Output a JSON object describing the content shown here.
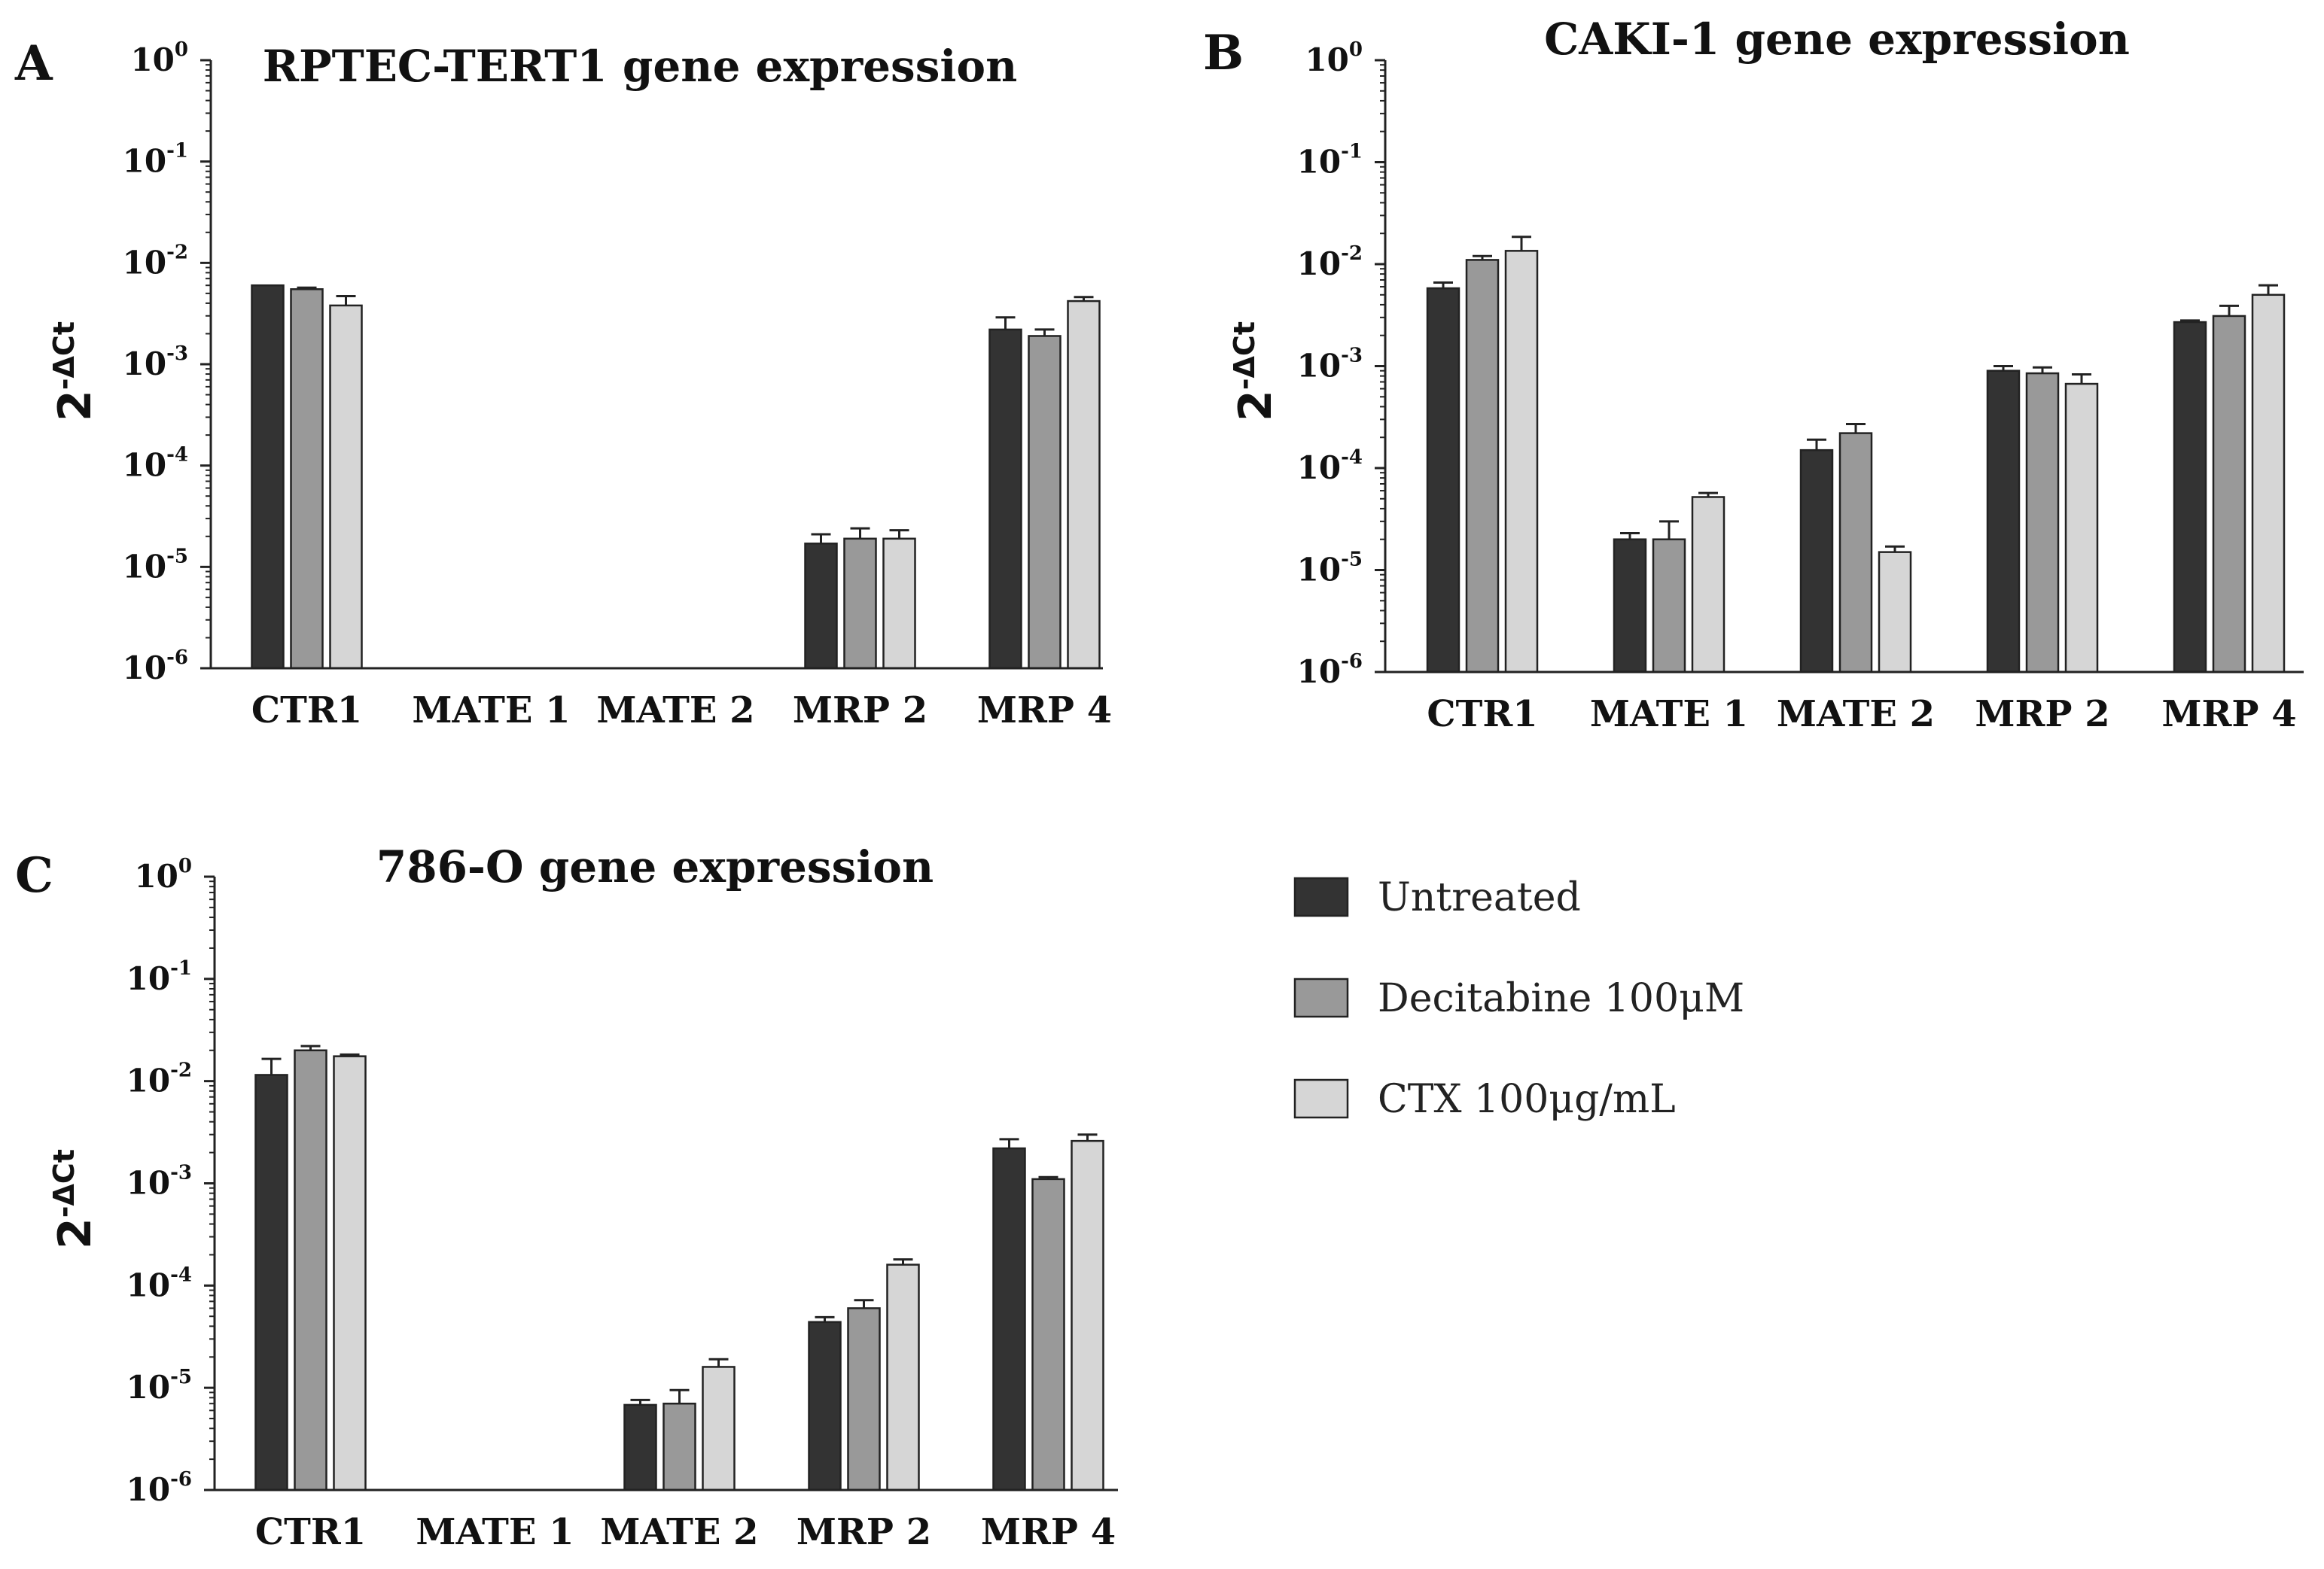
{
  "legend": {
    "items": [
      {
        "label": "Untreated",
        "color": "#333333"
      },
      {
        "label": "Decitabine 100μM",
        "color": "#999999"
      },
      {
        "label": "CTX 100μg/mL",
        "color": "#d6d6d6"
      }
    ]
  },
  "chart_data": [
    {
      "type": "bar",
      "panel": "A",
      "title": "RPTEC-TERT1 gene expression",
      "ylabel": "2-ΔCt",
      "ylabel_base": "2",
      "ylabel_sup": "-ΔCt",
      "yscale": "log",
      "ylim": [
        1e-06,
        1
      ],
      "yticks": [
        {
          "base": "10",
          "exp": "0"
        },
        {
          "base": "10",
          "exp": "-1"
        },
        {
          "base": "10",
          "exp": "-2"
        },
        {
          "base": "10",
          "exp": "-3"
        },
        {
          "base": "10",
          "exp": "-4"
        },
        {
          "base": "10",
          "exp": "-5"
        },
        {
          "base": "10",
          "exp": "-6"
        }
      ],
      "categories": [
        "CTR1",
        "MATE 1",
        "MATE 2",
        "MRP 2",
        "MRP 4"
      ],
      "series": [
        {
          "name": "Untreated",
          "values": [
            0.006,
            null,
            null,
            1.7e-05,
            0.0022
          ],
          "errors": [
            0,
            null,
            null,
            4e-06,
            0.0007
          ]
        },
        {
          "name": "Decitabine 100μM",
          "values": [
            0.0055,
            null,
            null,
            1.9e-05,
            0.0019
          ],
          "errors": [
            0.0002,
            null,
            null,
            5e-06,
            0.0003
          ]
        },
        {
          "name": "CTX 100μg/mL",
          "values": [
            0.0038,
            null,
            null,
            1.9e-05,
            0.0042
          ],
          "errors": [
            0.0009,
            null,
            null,
            4e-06,
            0.0004
          ]
        }
      ]
    },
    {
      "type": "bar",
      "panel": "B",
      "title": "CAKI-1 gene expression",
      "ylabel": "2-ΔCt",
      "ylabel_base": "2",
      "ylabel_sup": "-ΔCt",
      "yscale": "log",
      "ylim": [
        1e-06,
        1
      ],
      "yticks": [
        {
          "base": "10",
          "exp": "0"
        },
        {
          "base": "10",
          "exp": "-1"
        },
        {
          "base": "10",
          "exp": "-2"
        },
        {
          "base": "10",
          "exp": "-3"
        },
        {
          "base": "10",
          "exp": "-4"
        },
        {
          "base": "10",
          "exp": "-5"
        },
        {
          "base": "10",
          "exp": "-6"
        }
      ],
      "categories": [
        "CTR1",
        "MATE 1",
        "MATE 2",
        "MRP 2",
        "MRP 4"
      ],
      "series": [
        {
          "name": "Untreated",
          "values": [
            0.0058,
            2e-05,
            0.00015,
            0.0009,
            0.0027
          ],
          "errors": [
            0.0008,
            3e-06,
            4e-05,
            0.0001,
            0.0001
          ]
        },
        {
          "name": "Decitabine 100μM",
          "values": [
            0.011,
            2e-05,
            0.00022,
            0.00085,
            0.0031
          ],
          "errors": [
            0.001,
            1e-05,
            5e-05,
            0.00012,
            0.0008
          ]
        },
        {
          "name": "CTX 100μg/mL",
          "values": [
            0.0135,
            5.2e-05,
            1.5e-05,
            0.00067,
            0.005
          ],
          "errors": [
            0.005,
            5e-06,
            2e-06,
            0.00016,
            0.0012
          ]
        }
      ]
    },
    {
      "type": "bar",
      "panel": "C",
      "title": "786-O gene expression",
      "ylabel": "2-ΔCt",
      "ylabel_base": "2",
      "ylabel_sup": "-ΔCt",
      "yscale": "log",
      "ylim": [
        1e-06,
        1
      ],
      "yticks": [
        {
          "base": "10",
          "exp": "0"
        },
        {
          "base": "10",
          "exp": "-1"
        },
        {
          "base": "10",
          "exp": "-2"
        },
        {
          "base": "10",
          "exp": "-3"
        },
        {
          "base": "10",
          "exp": "-4"
        },
        {
          "base": "10",
          "exp": "-5"
        },
        {
          "base": "10",
          "exp": "-6"
        }
      ],
      "categories": [
        "CTR1",
        "MATE 1",
        "MATE 2",
        "MRP 2",
        "MRP 4"
      ],
      "series": [
        {
          "name": "Untreated",
          "values": [
            0.0115,
            null,
            6.8e-06,
            4.4e-05,
            0.0022
          ],
          "errors": [
            0.005,
            null,
            8e-07,
            5e-06,
            0.0005
          ]
        },
        {
          "name": "Decitabine 100μM",
          "values": [
            0.02,
            null,
            7e-06,
            6e-05,
            0.0011
          ],
          "errors": [
            0.002,
            null,
            2.5e-06,
            1.2e-05,
            5e-05
          ]
        },
        {
          "name": "CTX 100μg/mL",
          "values": [
            0.0175,
            null,
            1.6e-05,
            0.00016,
            0.0026
          ],
          "errors": [
            0.0007,
            null,
            3e-06,
            2e-05,
            0.0004
          ]
        }
      ]
    }
  ]
}
